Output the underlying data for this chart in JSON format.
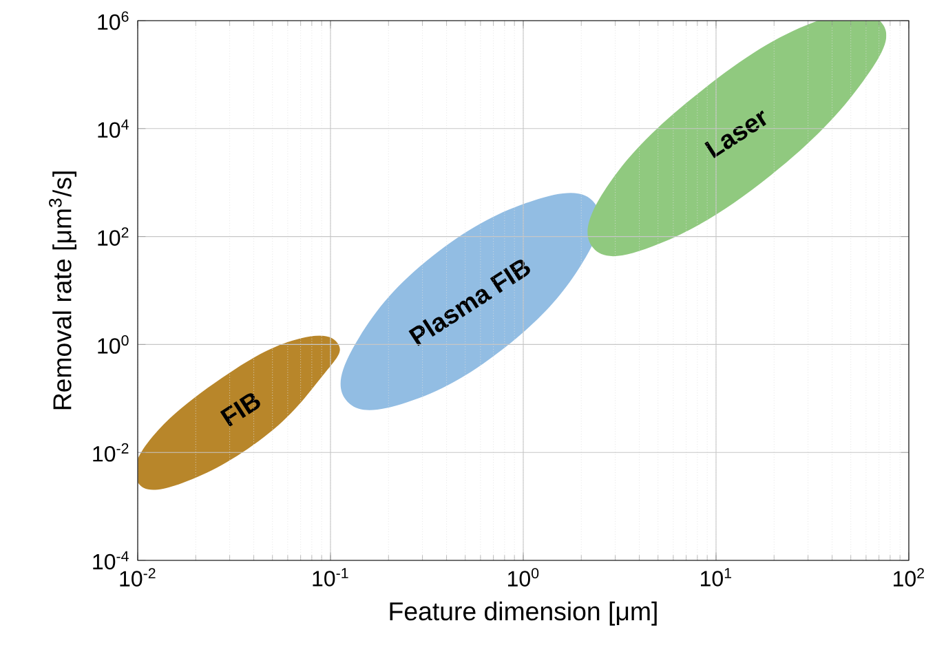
{
  "chart_data": {
    "type": "area",
    "xlabel": "Feature dimension [μm]",
    "ylabel": "Removal rate [μm$^{3}$/s]",
    "log": "xy",
    "grid": true,
    "xlim": [
      0.01,
      100
    ],
    "ylim": [
      0.0001,
      1000000
    ],
    "xticks": [
      {
        "value": 0.01,
        "label": "10$^{-2}$"
      },
      {
        "value": 0.1,
        "label": "10$^{-1}$"
      },
      {
        "value": 1,
        "label": "10$^{0}$"
      },
      {
        "value": 10,
        "label": "10$^{1}$"
      },
      {
        "value": 100,
        "label": "10$^{2}$"
      }
    ],
    "yticks": [
      {
        "value": 0.0001,
        "label": "10$^{-4}$"
      },
      {
        "value": 0.01,
        "label": "10$^{-2}$"
      },
      {
        "value": 1,
        "label": "10$^{0}$"
      },
      {
        "value": 100,
        "label": "10$^{2}$"
      },
      {
        "value": 10000,
        "label": "10$^{4}$"
      },
      {
        "value": 1000000,
        "label": "10$^{6}$"
      }
    ],
    "series": [
      {
        "name": "FIB",
        "color": "#b8862a",
        "x": [
          0.11,
          0.09,
          0.045,
          0.017,
          0.01,
          0.012,
          0.03,
          0.07
        ],
        "values": [
          1.0,
          0.25,
          0.019,
          0.0027,
          0.0028,
          0.02,
          0.3,
          1.3
        ]
      },
      {
        "name": "Plasma FIB",
        "color": "#92bde3",
        "x": [
          2.35,
          2.0,
          0.81,
          0.25,
          0.12,
          0.14,
          0.34,
          1.12
        ],
        "values": [
          410,
          30,
          0.9,
          0.085,
          0.095,
          1.3,
          44,
          460
        ]
      },
      {
        "name": "Laser",
        "color": "#90c97f",
        "x": [
          72,
          58,
          19.3,
          5.1,
          2.3,
          2.8,
          8.5,
          32
        ],
        "values": [
          930000,
          76000,
          1380,
          74,
          62,
          980,
          52000,
          930000
        ]
      }
    ]
  }
}
